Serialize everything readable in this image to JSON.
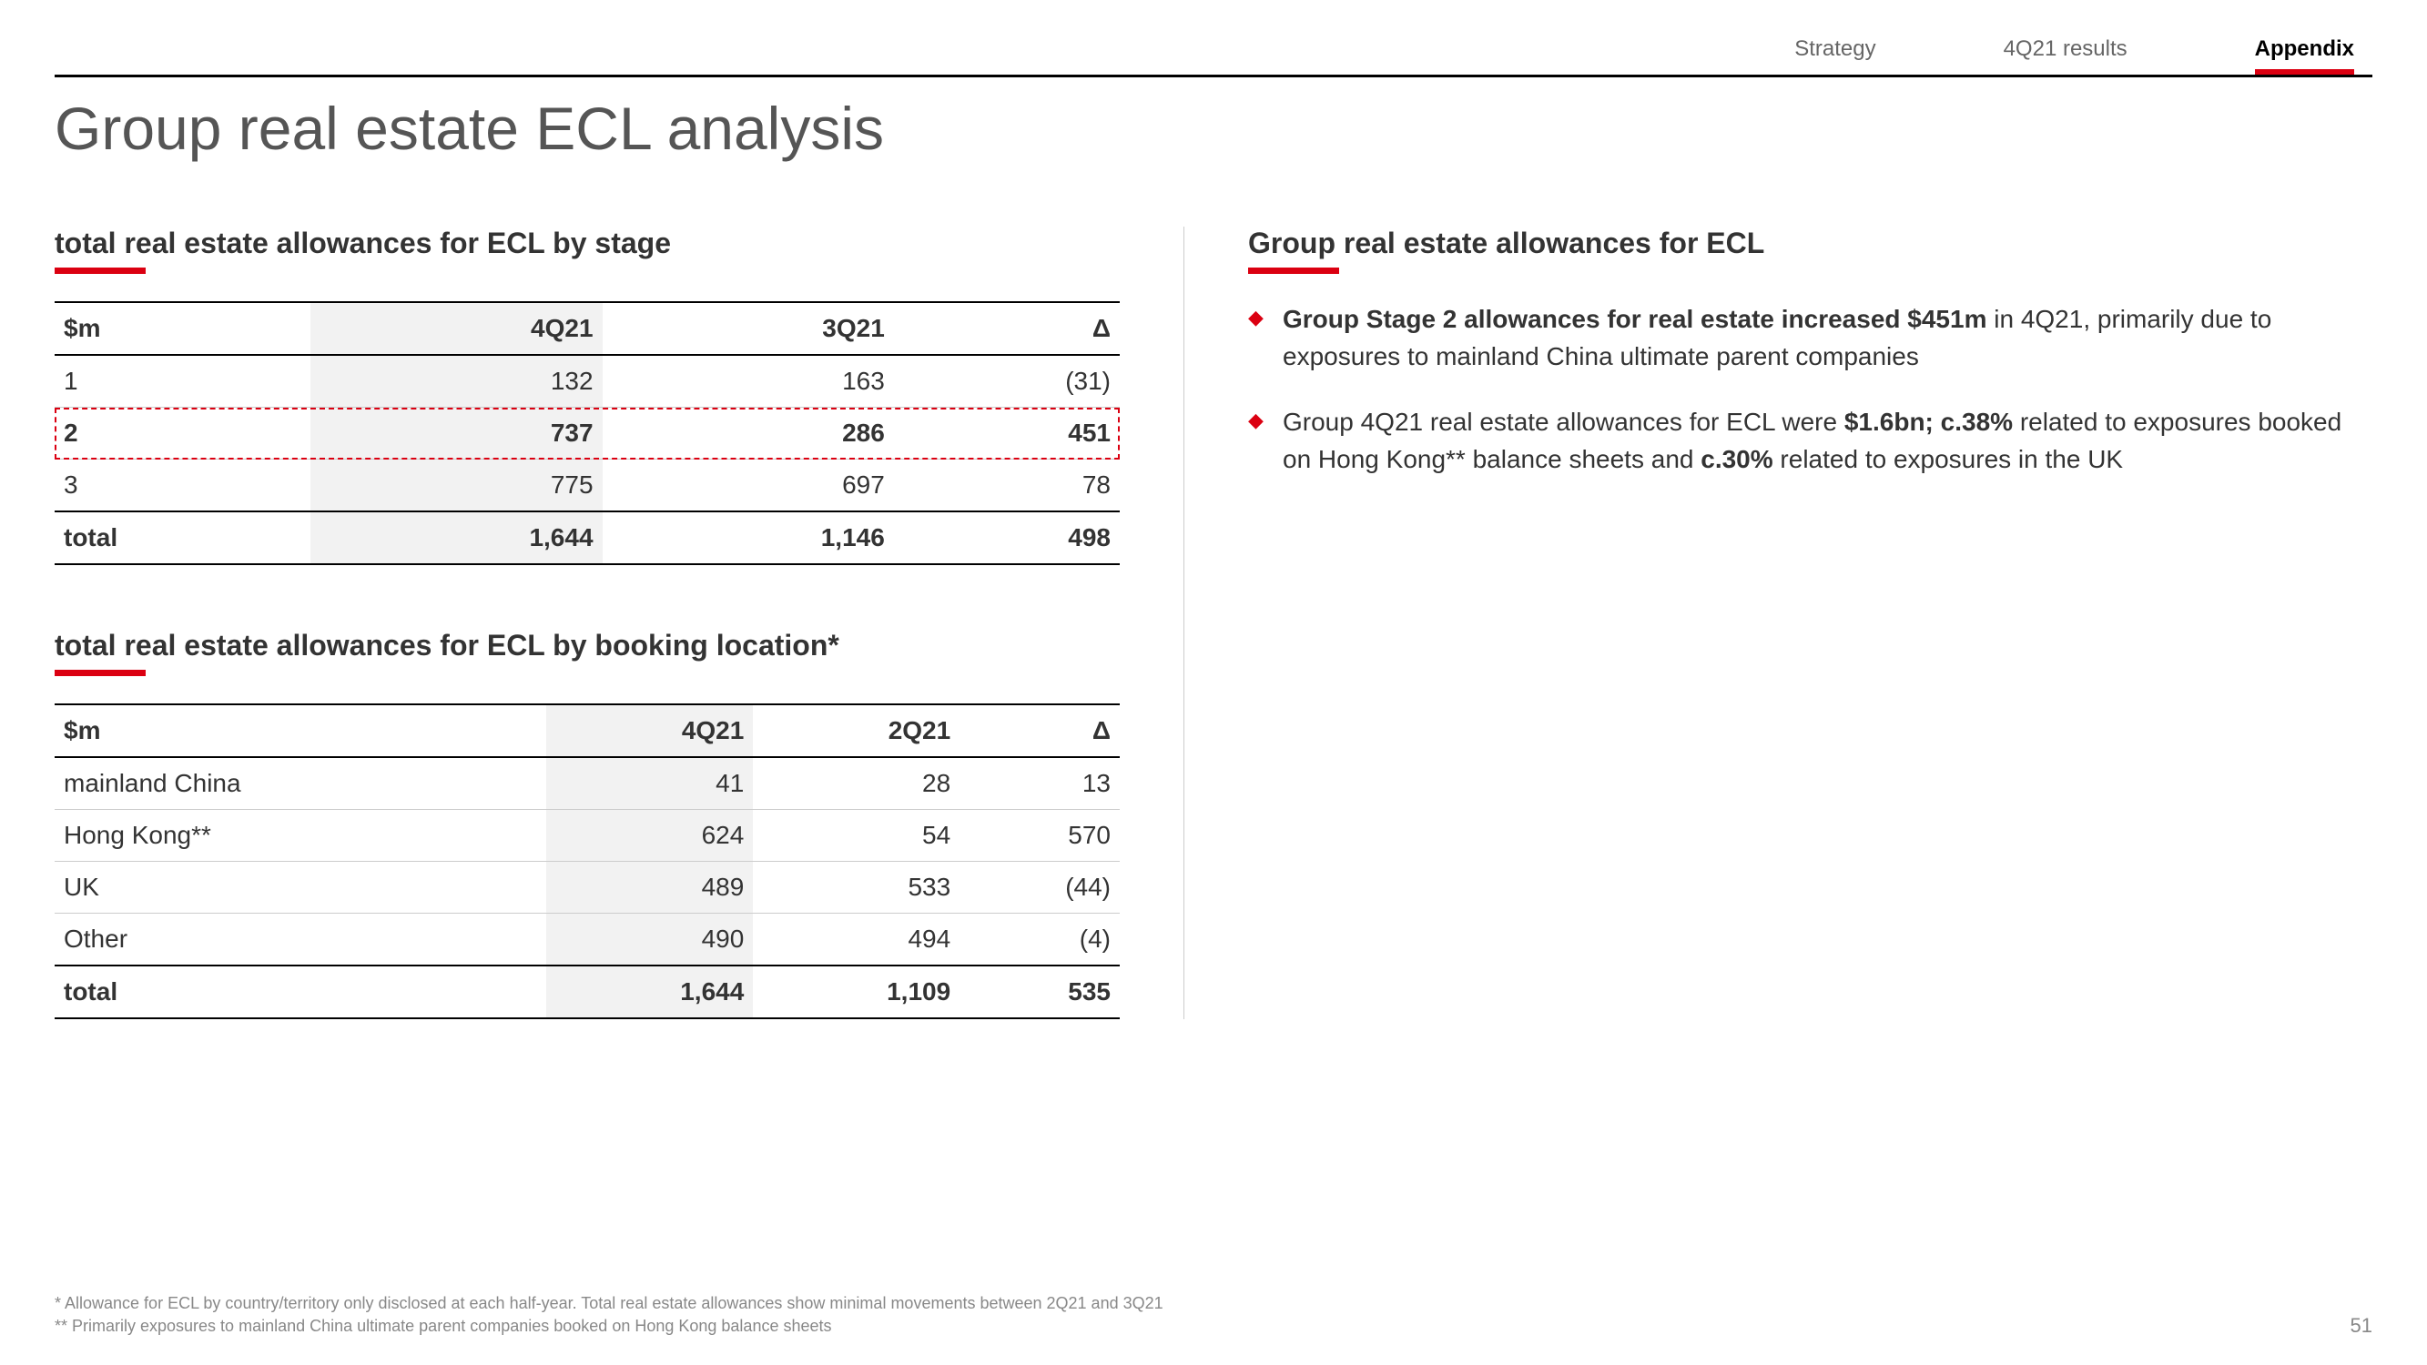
{
  "nav": {
    "tabs": [
      "Strategy",
      "4Q21 results",
      "Appendix"
    ],
    "active_index": 2
  },
  "page_title": "Group real estate ECL analysis",
  "accent_color": "#db0011",
  "table1": {
    "title": "total real estate allowances for ECL by stage",
    "columns": [
      "$m",
      "4Q21",
      "3Q21",
      "Δ"
    ],
    "shaded_col_index": 1,
    "highlight_row_index": 1,
    "rows": [
      [
        "1",
        "132",
        "163",
        "(31)"
      ],
      [
        "2",
        "737",
        "286",
        "451"
      ],
      [
        "3",
        "775",
        "697",
        "78"
      ]
    ],
    "total_row": [
      "total",
      "1,644",
      "1,146",
      "498"
    ]
  },
  "table2": {
    "title": "total real estate allowances for ECL by booking location*",
    "columns": [
      "$m",
      "4Q21",
      "2Q21",
      "Δ"
    ],
    "shaded_col_index": 1,
    "rows": [
      [
        "mainland China",
        "41",
        "28",
        "13"
      ],
      [
        "Hong Kong**",
        "624",
        "54",
        "570"
      ],
      [
        "UK",
        "489",
        "533",
        "(44)"
      ],
      [
        "Other",
        "490",
        "494",
        "(4)"
      ]
    ],
    "total_row": [
      "total",
      "1,644",
      "1,109",
      "535"
    ]
  },
  "right_section": {
    "title": "Group real estate allowances for ECL",
    "bullets": [
      "<b>Group Stage 2 allowances for real estate increased $451m</b> in 4Q21, primarily due to exposures to mainland China ultimate parent companies",
      "Group 4Q21 real estate allowances for ECL were <b>$1.6bn; c.38%</b> related to exposures booked on Hong Kong** balance sheets and <b>c.30%</b> related to exposures in the UK"
    ]
  },
  "footnotes": [
    "* Allowance for ECL by  country/territory only disclosed at each half-year. Total real estate allowances show minimal movements between 2Q21 and 3Q21",
    "** Primarily exposures to mainland China ultimate parent companies booked on Hong Kong balance sheets"
  ],
  "page_number": "51"
}
